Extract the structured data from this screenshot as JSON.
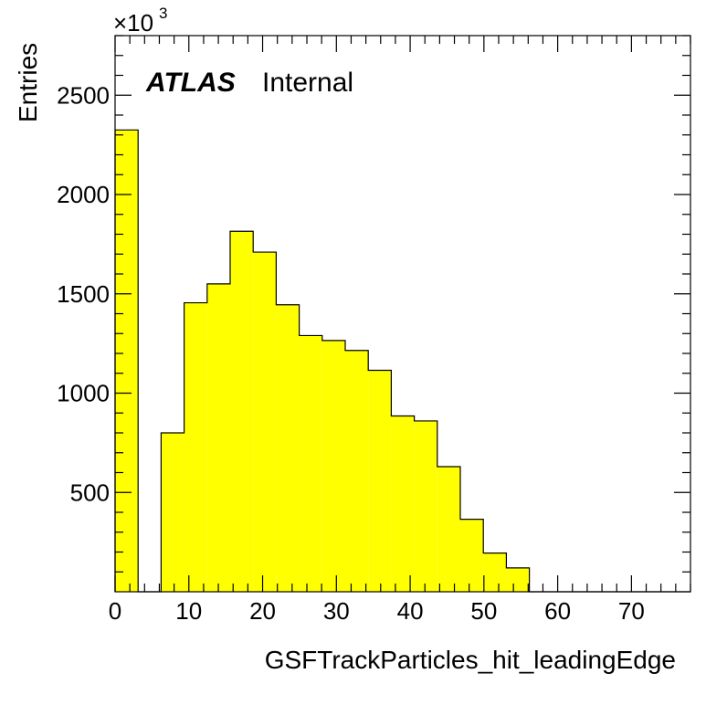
{
  "chart_data": {
    "type": "bar",
    "xlabel": "GSFTrackParticles_hit_leadingEdge",
    "ylabel": "Entries",
    "y_multiplier": "×10",
    "y_multiplier_exp": "3",
    "xlim": [
      0,
      78
    ],
    "ylim": [
      0,
      2800
    ],
    "x_ticks": [
      0,
      10,
      20,
      30,
      40,
      50,
      60,
      70
    ],
    "x_tick_labels": [
      "0",
      "10",
      "20",
      "30",
      "40",
      "50",
      "60",
      "70"
    ],
    "y_ticks": [
      500,
      1000,
      1500,
      2000,
      2500
    ],
    "y_tick_labels": [
      "500",
      "1000",
      "1500",
      "2000",
      "2500"
    ],
    "bin_edges": [
      0,
      3.12,
      6.24,
      9.36,
      12.48,
      15.6,
      18.72,
      21.84,
      24.96,
      28.08,
      31.2,
      34.32,
      37.44,
      40.56,
      43.68,
      46.8,
      49.92,
      53.04,
      56.16,
      59.28,
      62.4,
      65.52,
      68.64,
      71.76,
      74.88,
      78
    ],
    "values": [
      2325,
      0,
      800,
      1455,
      1550,
      1815,
      1710,
      1445,
      1290,
      1265,
      1215,
      1115,
      885,
      860,
      630,
      365,
      195,
      120,
      0,
      0,
      0,
      0,
      0,
      0,
      0
    ],
    "fill_color": "#ffff00",
    "line_color": "#000000",
    "grid": false
  },
  "labels": {
    "experiment": "ATLAS",
    "status": "Internal"
  }
}
